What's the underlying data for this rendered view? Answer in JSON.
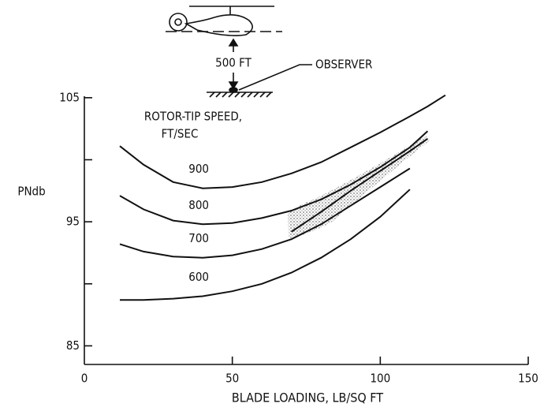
{
  "chart_data": {
    "type": "line",
    "x_label": "BLADE LOADING, LB/SQ FT",
    "y_label": "PNdb",
    "annotations": {
      "legend_title": [
        "ROTOR-TIP SPEED,",
        "FT/SEC"
      ],
      "altitude": "500 FT",
      "observer": "OBSERVER"
    },
    "x": [
      12,
      20,
      30,
      40,
      50,
      60,
      70,
      80,
      90,
      100,
      110,
      116,
      122
    ],
    "series": [
      {
        "name": "900",
        "color": "#111111",
        "values": [
          101.1,
          99.6,
          98.2,
          97.7,
          97.8,
          98.2,
          98.9,
          99.8,
          101,
          102.2,
          103.5,
          104.3,
          105.2
        ]
      },
      {
        "name": "800",
        "color": "#111111",
        "values": [
          97.1,
          96,
          95.1,
          94.8,
          94.9,
          95.3,
          95.9,
          96.8,
          98,
          99.4,
          101,
          102.3,
          null
        ]
      },
      {
        "name": "700",
        "color": "#111111",
        "values": [
          93.2,
          92.6,
          92.2,
          92.1,
          92.3,
          92.8,
          93.6,
          94.8,
          96.3,
          97.8,
          99.3,
          null,
          null
        ]
      },
      {
        "name": "600",
        "color": "#111111",
        "values": [
          88.7,
          88.7,
          88.8,
          89,
          89.4,
          90,
          90.9,
          92.1,
          93.6,
          95.4,
          97.6,
          null,
          null
        ]
      },
      {
        "color": "#000000",
        "values": [
          null,
          null,
          null,
          null,
          null,
          null,
          94.2,
          95.8,
          97.5,
          99.1,
          100.7,
          101.7,
          null
        ]
      }
    ],
    "xlim": [
      0,
      150
    ],
    "xticks": [
      0,
      50,
      100,
      150
    ],
    "ylim": [
      83.5,
      105.5
    ],
    "yticks": [
      85,
      95,
      105
    ],
    "yminor": [
      90,
      100
    ],
    "grid": false
  }
}
